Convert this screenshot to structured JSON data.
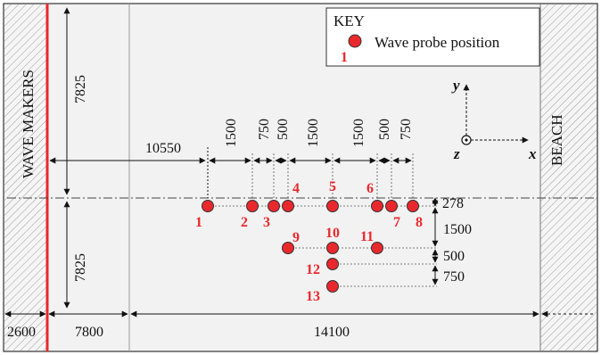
{
  "labels": {
    "wave_makers": "WAVE MAKERS",
    "beach": "BEACH"
  },
  "key": {
    "title": "KEY",
    "entry": "Wave probe position",
    "sample_number": "1"
  },
  "axes": {
    "x": "x",
    "y": "y",
    "z": "z"
  },
  "dimensions": {
    "upper_width": "7825",
    "lower_width": "7825",
    "to_first_probe": "10550",
    "wave_maker_zone": "2600",
    "flat_length": "7800",
    "basin_length": "14100",
    "s1_2": "1500",
    "s2_3": "750",
    "s3_4": "500",
    "s4_5": "1500",
    "s5_6": "1500",
    "s6_7": "500",
    "s7_8": "750",
    "v_offset": "278",
    "v_1500": "1500",
    "v_500": "500",
    "v_750": "750"
  },
  "probes": [
    {
      "number": "1"
    },
    {
      "number": "2"
    },
    {
      "number": "3"
    },
    {
      "number": "4"
    },
    {
      "number": "5"
    },
    {
      "number": "6"
    },
    {
      "number": "7"
    },
    {
      "number": "8"
    },
    {
      "number": "9"
    },
    {
      "number": "10"
    },
    {
      "number": "11"
    },
    {
      "number": "12"
    },
    {
      "number": "13"
    }
  ],
  "colors": {
    "probe_fill": "#e8282d",
    "probe_label": "#e8282d",
    "wave_maker_line": "#e8282d",
    "basin_fill": "#f2f2f2"
  }
}
